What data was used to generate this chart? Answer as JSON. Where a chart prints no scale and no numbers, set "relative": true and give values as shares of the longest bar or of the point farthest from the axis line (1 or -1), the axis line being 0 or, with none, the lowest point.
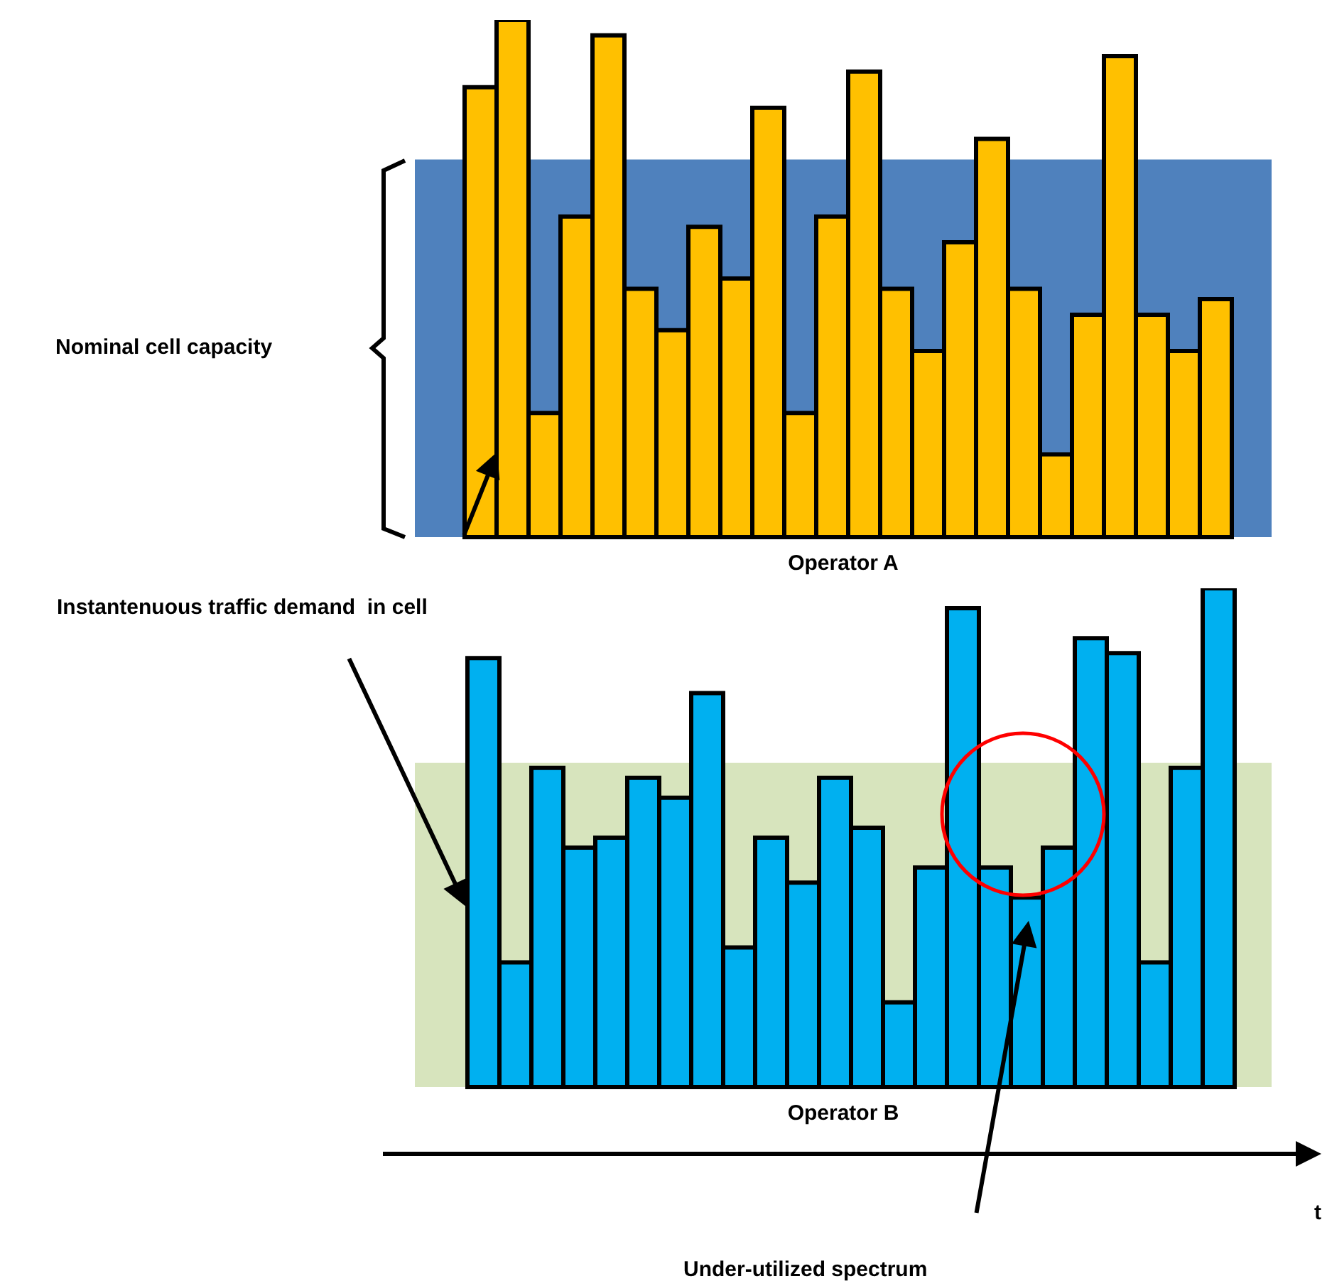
{
  "chart_data": [
    {
      "type": "bar",
      "relative": true,
      "xlabel": "Operator A",
      "color": "#ffc000",
      "categories": [
        null,
        null,
        null,
        null,
        null,
        null,
        null,
        null,
        null,
        null,
        null,
        null,
        null,
        null,
        null,
        null,
        null,
        null,
        null,
        null,
        null,
        null,
        null,
        null
      ],
      "values": [
        0.87,
        1,
        0.24,
        0.62,
        0.97,
        0.48,
        0.4,
        0.6,
        0.5,
        0.83,
        0.24,
        0.62,
        0.9,
        0.48,
        0.36,
        0.57,
        0.77,
        0.48,
        0.16,
        0.43,
        0.93,
        0.43,
        0.36,
        0.46
      ],
      "bands": [
        {
          "axis": "y",
          "from": 0,
          "to": 0.73,
          "color": "#4f81bd"
        }
      ],
      "annotations": [
        "Nominal cell capacity",
        "Instantenuous traffic demand  in cell"
      ]
    },
    {
      "type": "bar",
      "relative": true,
      "xlabel": "Operator B",
      "color": "#00b0f0",
      "categories": [
        null,
        null,
        null,
        null,
        null,
        null,
        null,
        null,
        null,
        null,
        null,
        null,
        null,
        null,
        null,
        null,
        null,
        null,
        null,
        null,
        null,
        null,
        null,
        null
      ],
      "values": [
        0.86,
        0.25,
        0.64,
        0.48,
        0.5,
        0.62,
        0.58,
        0.79,
        0.28,
        0.5,
        0.41,
        0.62,
        0.52,
        0.17,
        0.44,
        0.96,
        0.44,
        0.38,
        0.48,
        0.9,
        0.87,
        0.25,
        0.64,
        1
      ],
      "bands": [
        {
          "axis": "y",
          "from": 0,
          "to": 0.65,
          "color": "#d7e4bd"
        }
      ],
      "annotations": [
        "Under-utilized spectrum",
        "t"
      ]
    }
  ]
}
